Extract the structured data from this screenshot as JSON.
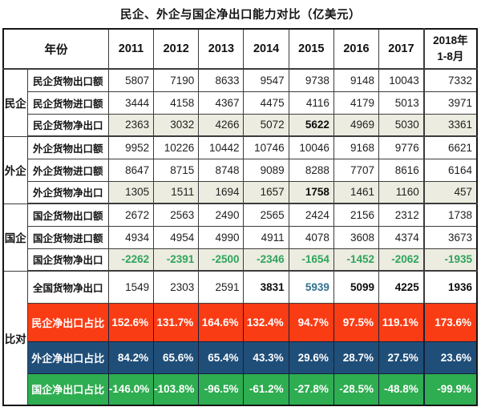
{
  "title": "民企、外企与国企净出口能力对比（亿美元）",
  "colors": {
    "red_row": "#fa3c15",
    "blue_row": "#1f4e79",
    "green_row": "#2ead51",
    "net_row_background": "#ecece0",
    "negative_green_text": "#2ea45c",
    "highlight_blue_text": "#31708f"
  },
  "chart_data": {
    "type": "table",
    "title": "民企、外企与国企净出口能力对比（亿美元）",
    "unit": "亿美元",
    "corner_label": "年份",
    "year_columns": [
      "2011",
      "2012",
      "2013",
      "2014",
      "2015",
      "2016",
      "2017"
    ],
    "last_column": {
      "line1": "2018年",
      "line2": "1-8月",
      "full": "2018年1-8月"
    },
    "row_groups": [
      {
        "label": "民企",
        "row_indexes": [
          0,
          1,
          2
        ]
      },
      {
        "label": "外企",
        "row_indexes": [
          3,
          4,
          5
        ]
      },
      {
        "label": "国企",
        "row_indexes": [
          6,
          7,
          8
        ]
      },
      {
        "label": "比对",
        "row_indexes": [
          9,
          10,
          11,
          12
        ]
      }
    ],
    "rows": [
      {
        "label": "民企货物出口额",
        "values": [
          5807,
          7190,
          8633,
          9547,
          9738,
          9148,
          10043,
          7332
        ]
      },
      {
        "label": "民企货物进口额",
        "values": [
          3444,
          4158,
          4367,
          4475,
          4116,
          4179,
          5013,
          3971
        ]
      },
      {
        "label": "民企货物净出口",
        "values": [
          2363,
          3032,
          4266,
          5072,
          5622,
          4969,
          5030,
          3361
        ]
      },
      {
        "label": "外企货物出口额",
        "values": [
          9952,
          10226,
          10442,
          10746,
          10046,
          9168,
          9776,
          6621
        ]
      },
      {
        "label": "外企货物进口额",
        "values": [
          8647,
          8715,
          8748,
          9089,
          8288,
          7707,
          8616,
          6164
        ]
      },
      {
        "label": "外企货物净出口",
        "values": [
          1305,
          1511,
          1694,
          1657,
          1758,
          1461,
          1160,
          457
        ]
      },
      {
        "label": "国企货物出口额",
        "values": [
          2672,
          2563,
          2490,
          2565,
          2424,
          2156,
          2312,
          1738
        ]
      },
      {
        "label": "国企货物进口额",
        "values": [
          4934,
          4954,
          4990,
          4911,
          4078,
          3608,
          4374,
          3673
        ]
      },
      {
        "label": "国企货物净出口",
        "values": [
          -2262,
          -2391,
          -2500,
          -2346,
          -1654,
          -1452,
          -2062,
          -1935
        ]
      },
      {
        "label": "全国货物净出口",
        "values": [
          1549,
          2303,
          2591,
          3831,
          5939,
          5099,
          4225,
          1936
        ]
      },
      {
        "label": "民企净出口占比",
        "values": [
          "152.6%",
          "131.7%",
          "164.6%",
          "132.4%",
          "94.7%",
          "97.5%",
          "119.1%",
          "173.6%"
        ]
      },
      {
        "label": "外企净出口占比",
        "values": [
          "84.2%",
          "65.6%",
          "65.4%",
          "43.3%",
          "29.6%",
          "28.7%",
          "27.5%",
          "23.6%"
        ]
      },
      {
        "label": "国企净出口占比",
        "values": [
          "-146.0%",
          "-103.8%",
          "-96.5%",
          "-61.2%",
          "-27.8%",
          "-28.5%",
          "-48.8%",
          "-99.9%"
        ]
      }
    ]
  }
}
